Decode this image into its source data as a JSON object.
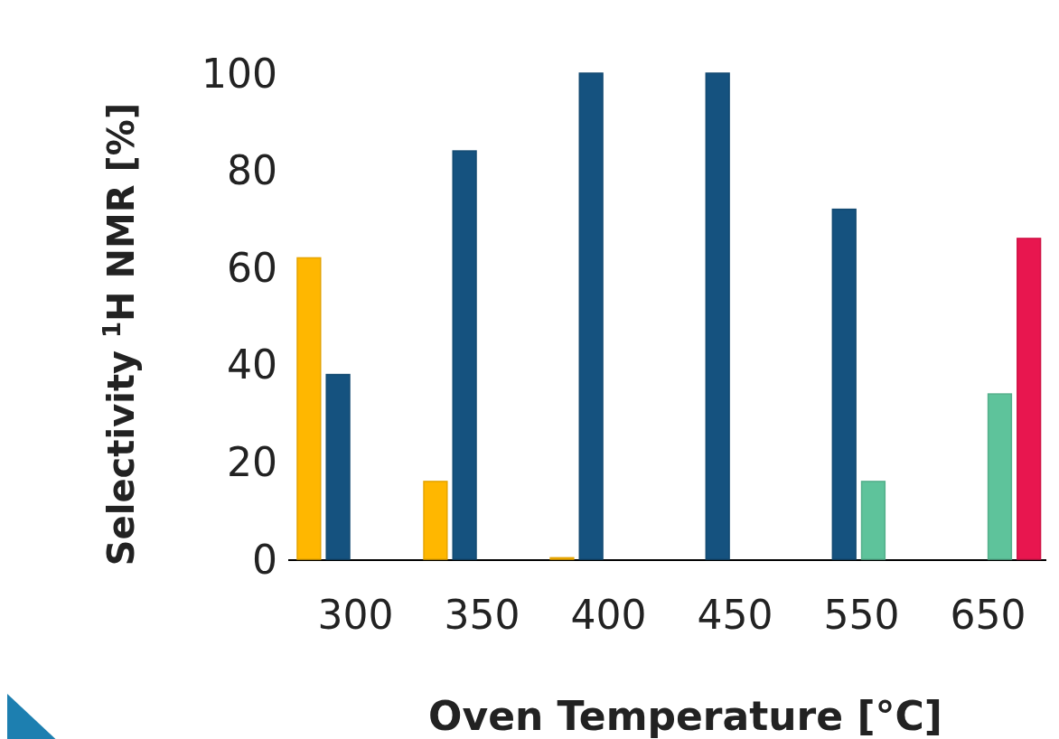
{
  "chart_data": {
    "type": "bar",
    "xlabel": "Oven Temperature [°C]",
    "ylabel": "Selectivity $^{1}$H NMR [%]",
    "categories": [
      "300",
      "350",
      "400",
      "450",
      "550",
      "650"
    ],
    "series": [
      {
        "color": "#ffb700",
        "values": [
          62,
          16,
          0.3,
          null,
          null,
          null
        ]
      },
      {
        "color": "#15527f",
        "values": [
          38,
          84,
          100,
          100,
          72,
          null
        ]
      },
      {
        "color": "#5ec39b",
        "values": [
          null,
          null,
          null,
          null,
          16,
          34
        ]
      },
      {
        "color": "#e8164f",
        "values": [
          null,
          null,
          null,
          null,
          null,
          66
        ]
      }
    ],
    "ylim": [
      0,
      100
    ],
    "yticks": [
      0,
      20,
      40,
      60,
      80,
      100
    ]
  }
}
